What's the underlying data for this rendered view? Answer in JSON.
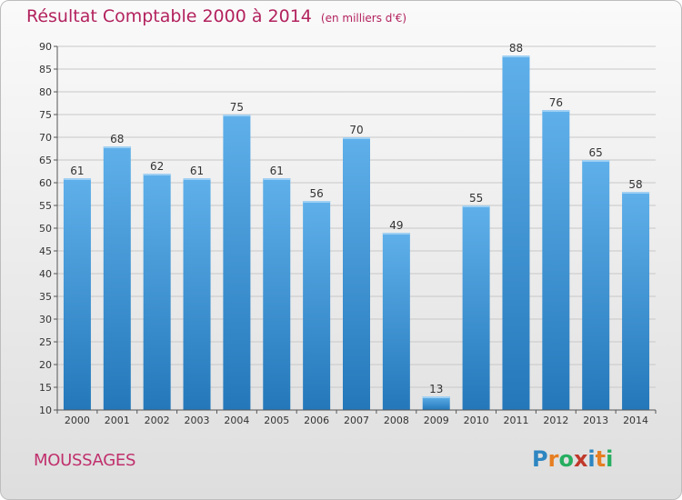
{
  "header": {
    "title": "Résultat Comptable 2000 à 2014",
    "unit_note": "(en milliers d'€)"
  },
  "footer": {
    "place": "MOUSSAGES",
    "logo": {
      "text": "Proxiti",
      "letters": [
        {
          "ch": "P",
          "color": "#2e86c1"
        },
        {
          "ch": "r",
          "color": "#e67e22"
        },
        {
          "ch": "o",
          "color": "#27ae60"
        },
        {
          "ch": "x",
          "color": "#c0392b"
        },
        {
          "ch": "i",
          "color": "#2e86c1"
        },
        {
          "ch": "t",
          "color": "#e67e22"
        },
        {
          "ch": "i",
          "color": "#27ae60"
        }
      ]
    }
  },
  "colors": {
    "title": "#b3225e",
    "bar_top": "#5fb0ea",
    "bar_bottom": "#2478ba",
    "grid": "#c8c8c8",
    "axis": "#555555"
  },
  "chart_data": {
    "type": "bar",
    "categories": [
      "2000",
      "2001",
      "2002",
      "2003",
      "2004",
      "2005",
      "2006",
      "2007",
      "2008",
      "2009",
      "2010",
      "2011",
      "2012",
      "2013",
      "2014"
    ],
    "values": [
      61,
      68,
      62,
      61,
      75,
      61,
      56,
      70,
      49,
      13,
      55,
      88,
      76,
      65,
      58
    ],
    "value_labels": [
      "61",
      "68",
      "62",
      "61",
      "75",
      "61",
      "56",
      "70",
      "49",
      "13",
      "55",
      "88",
      "76",
      "65",
      "58"
    ],
    "ylim": [
      10,
      90
    ],
    "yticks": [
      10,
      15,
      20,
      25,
      30,
      35,
      40,
      45,
      50,
      55,
      60,
      65,
      70,
      75,
      80,
      85,
      90
    ],
    "ytick_labels": [
      "10",
      "15",
      "20",
      "25",
      "30",
      "35",
      "40",
      "45",
      "50",
      "55",
      "60",
      "65",
      "70",
      "75",
      "80",
      "85",
      "90"
    ],
    "grid": true,
    "title": "Résultat Comptable 2000 à 2014",
    "xlabel": "",
    "ylabel": ""
  }
}
